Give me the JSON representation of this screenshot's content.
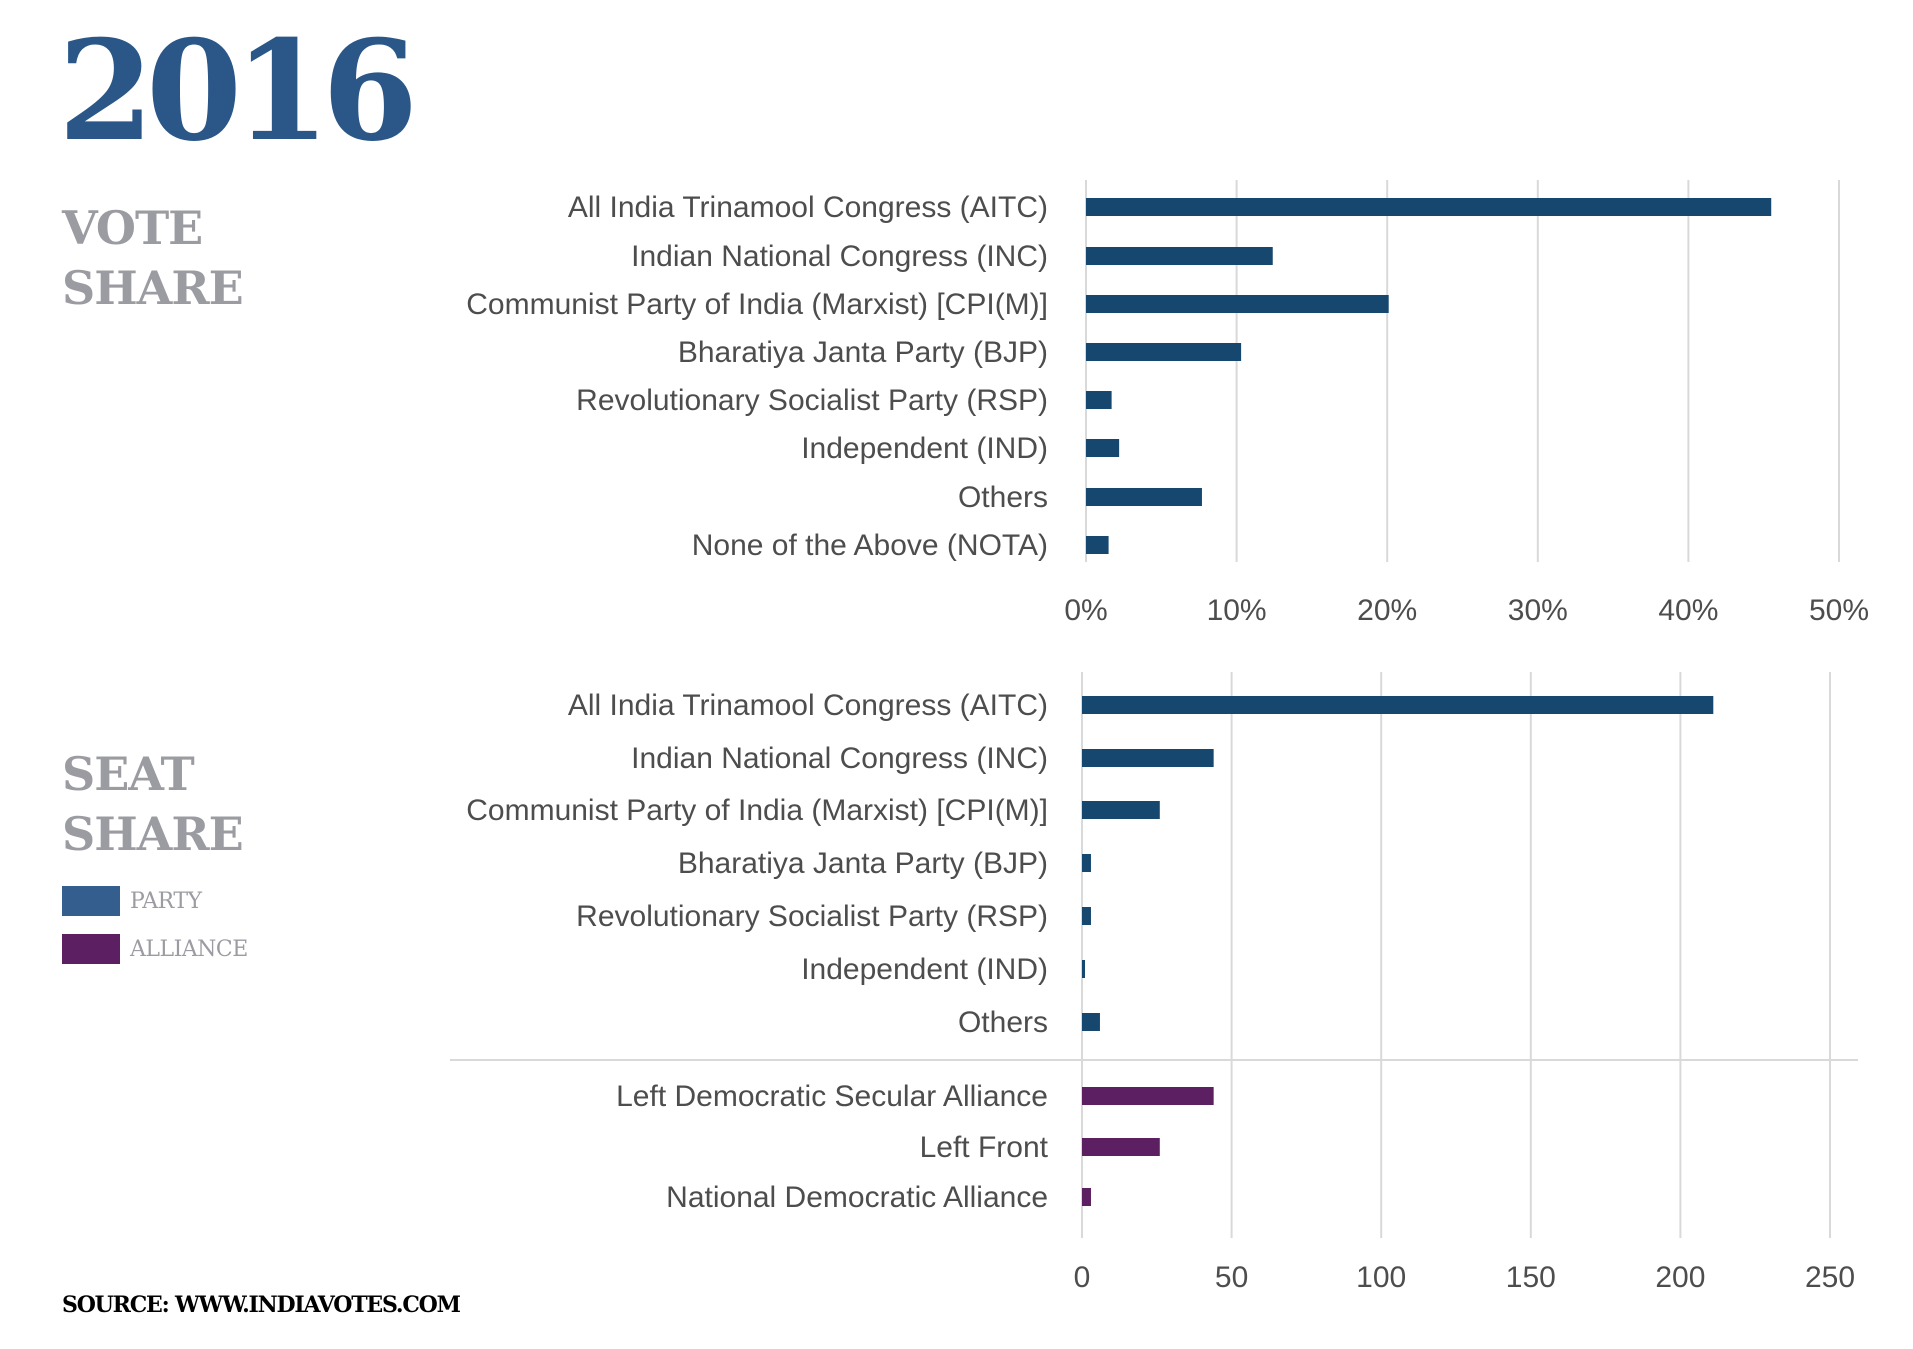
{
  "header": {
    "year": "2016"
  },
  "sections": {
    "vote": {
      "line1": "VOTE",
      "line2": "SHARE"
    },
    "seat": {
      "line1": "SEAT",
      "line2": "SHARE"
    }
  },
  "legend": [
    {
      "label": "PARTY",
      "color": "#345e8e"
    },
    {
      "label": "ALLIANCE",
      "color": "#5c1f61"
    }
  ],
  "source": "SOURCE: WWW.INDIAVOTES.COM",
  "colors": {
    "year": "#2a5788",
    "section_title": "#9a9ca1",
    "party_bar": "#16486f",
    "alliance_bar": "#5c1f61",
    "label_text": "#4d4d4d",
    "grid": "#d9d9d9"
  },
  "chart_data": [
    {
      "type": "bar",
      "orientation": "horizontal",
      "categories": [
        "All India Trinamool Congress (AITC)",
        "Indian National Congress (INC)",
        "Communist Party of India (Marxist) [CPI(M)]",
        "Bharatiya Janta Party (BJP)",
        "Revolutionary Socialist Party (RSP)",
        "Independent (IND)",
        "Others",
        "None of the Above (NOTA)"
      ],
      "values": [
        45.5,
        12.4,
        20.1,
        10.3,
        1.7,
        2.2,
        7.7,
        1.5
      ],
      "xlim": [
        0,
        50
      ],
      "xticks": [
        0,
        10,
        20,
        30,
        40,
        50
      ],
      "tick_suffix": "%",
      "grid": true
    },
    {
      "type": "bar",
      "orientation": "horizontal",
      "categories": [
        "All India Trinamool Congress (AITC)",
        "Indian National Congress (INC)",
        "Communist Party of India (Marxist) [CPI(M)]",
        "Bharatiya Janta Party (BJP)",
        "Revolutionary Socialist Party (RSP)",
        "Independent (IND)",
        "Others"
      ],
      "values": [
        211,
        44,
        26,
        3,
        3,
        1,
        6
      ],
      "alliance_categories": [
        "Left Democratic Secular Alliance",
        "Left Front",
        "National Democratic Alliance"
      ],
      "alliance_values": [
        44,
        26,
        3
      ],
      "xlim": [
        0,
        250
      ],
      "xticks": [
        0,
        50,
        100,
        150,
        200,
        250
      ],
      "tick_suffix": "",
      "grid": true
    }
  ]
}
